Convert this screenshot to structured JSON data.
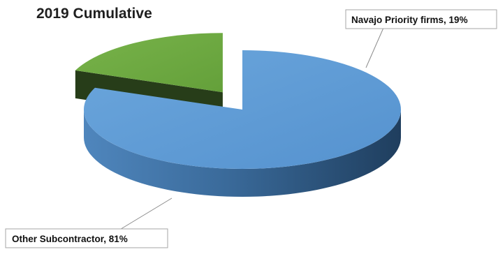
{
  "chart_data": {
    "type": "pie",
    "title": "2019 Cumulative",
    "slices": [
      {
        "name": "Other Subcontractor",
        "value": 81,
        "label": "Other Subcontractor, 81%",
        "color": "#5b9bd5"
      },
      {
        "name": "Navajo Priority firms",
        "value": 19,
        "label": "Navajo Priority firms, 19%",
        "color": "#70ad47"
      }
    ],
    "legend": "none",
    "style": "3d-exploded"
  }
}
